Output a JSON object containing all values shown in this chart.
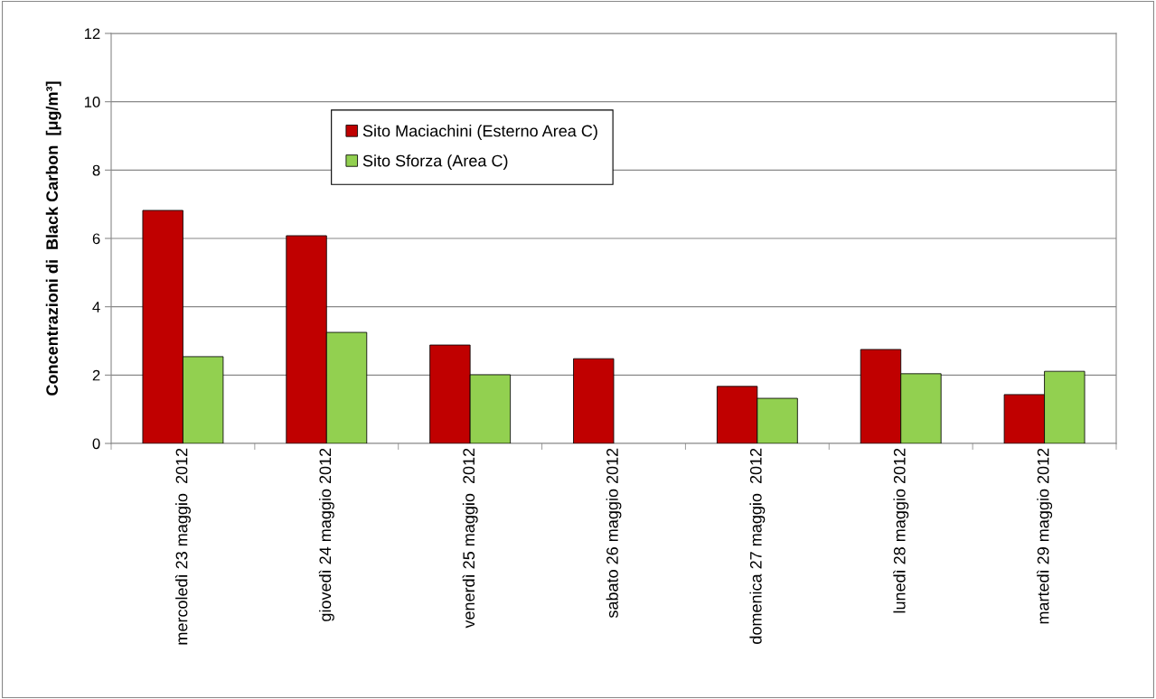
{
  "chart_data": {
    "type": "bar",
    "ylabel": "Concentrazioni di  Black Carbon  [μg/m³]",
    "categories": [
      "mercoledì 23 maggio  2012",
      "giovedì 24 maggio 2012",
      "venerdì 25 maggio  2012",
      "sabato 26 maggio 2012",
      "domenica 27 maggio  2012",
      "lunedì 28 maggio 2012",
      "martedì 29 maggio 2012"
    ],
    "series": [
      {
        "name": "Sito Maciachini (Esterno Area C)",
        "color": "#c00000",
        "values": [
          6.82,
          6.08,
          2.88,
          2.48,
          1.67,
          2.75,
          1.43
        ]
      },
      {
        "name": "Sito Sforza (Area C)",
        "color": "#92d050",
        "values": [
          2.54,
          3.25,
          2.01,
          null,
          1.32,
          2.04,
          2.11
        ]
      }
    ],
    "ylim": [
      0,
      12
    ],
    "yticks": [
      0,
      2,
      4,
      6,
      8,
      10,
      12
    ],
    "grid": "y",
    "legend": "top"
  }
}
